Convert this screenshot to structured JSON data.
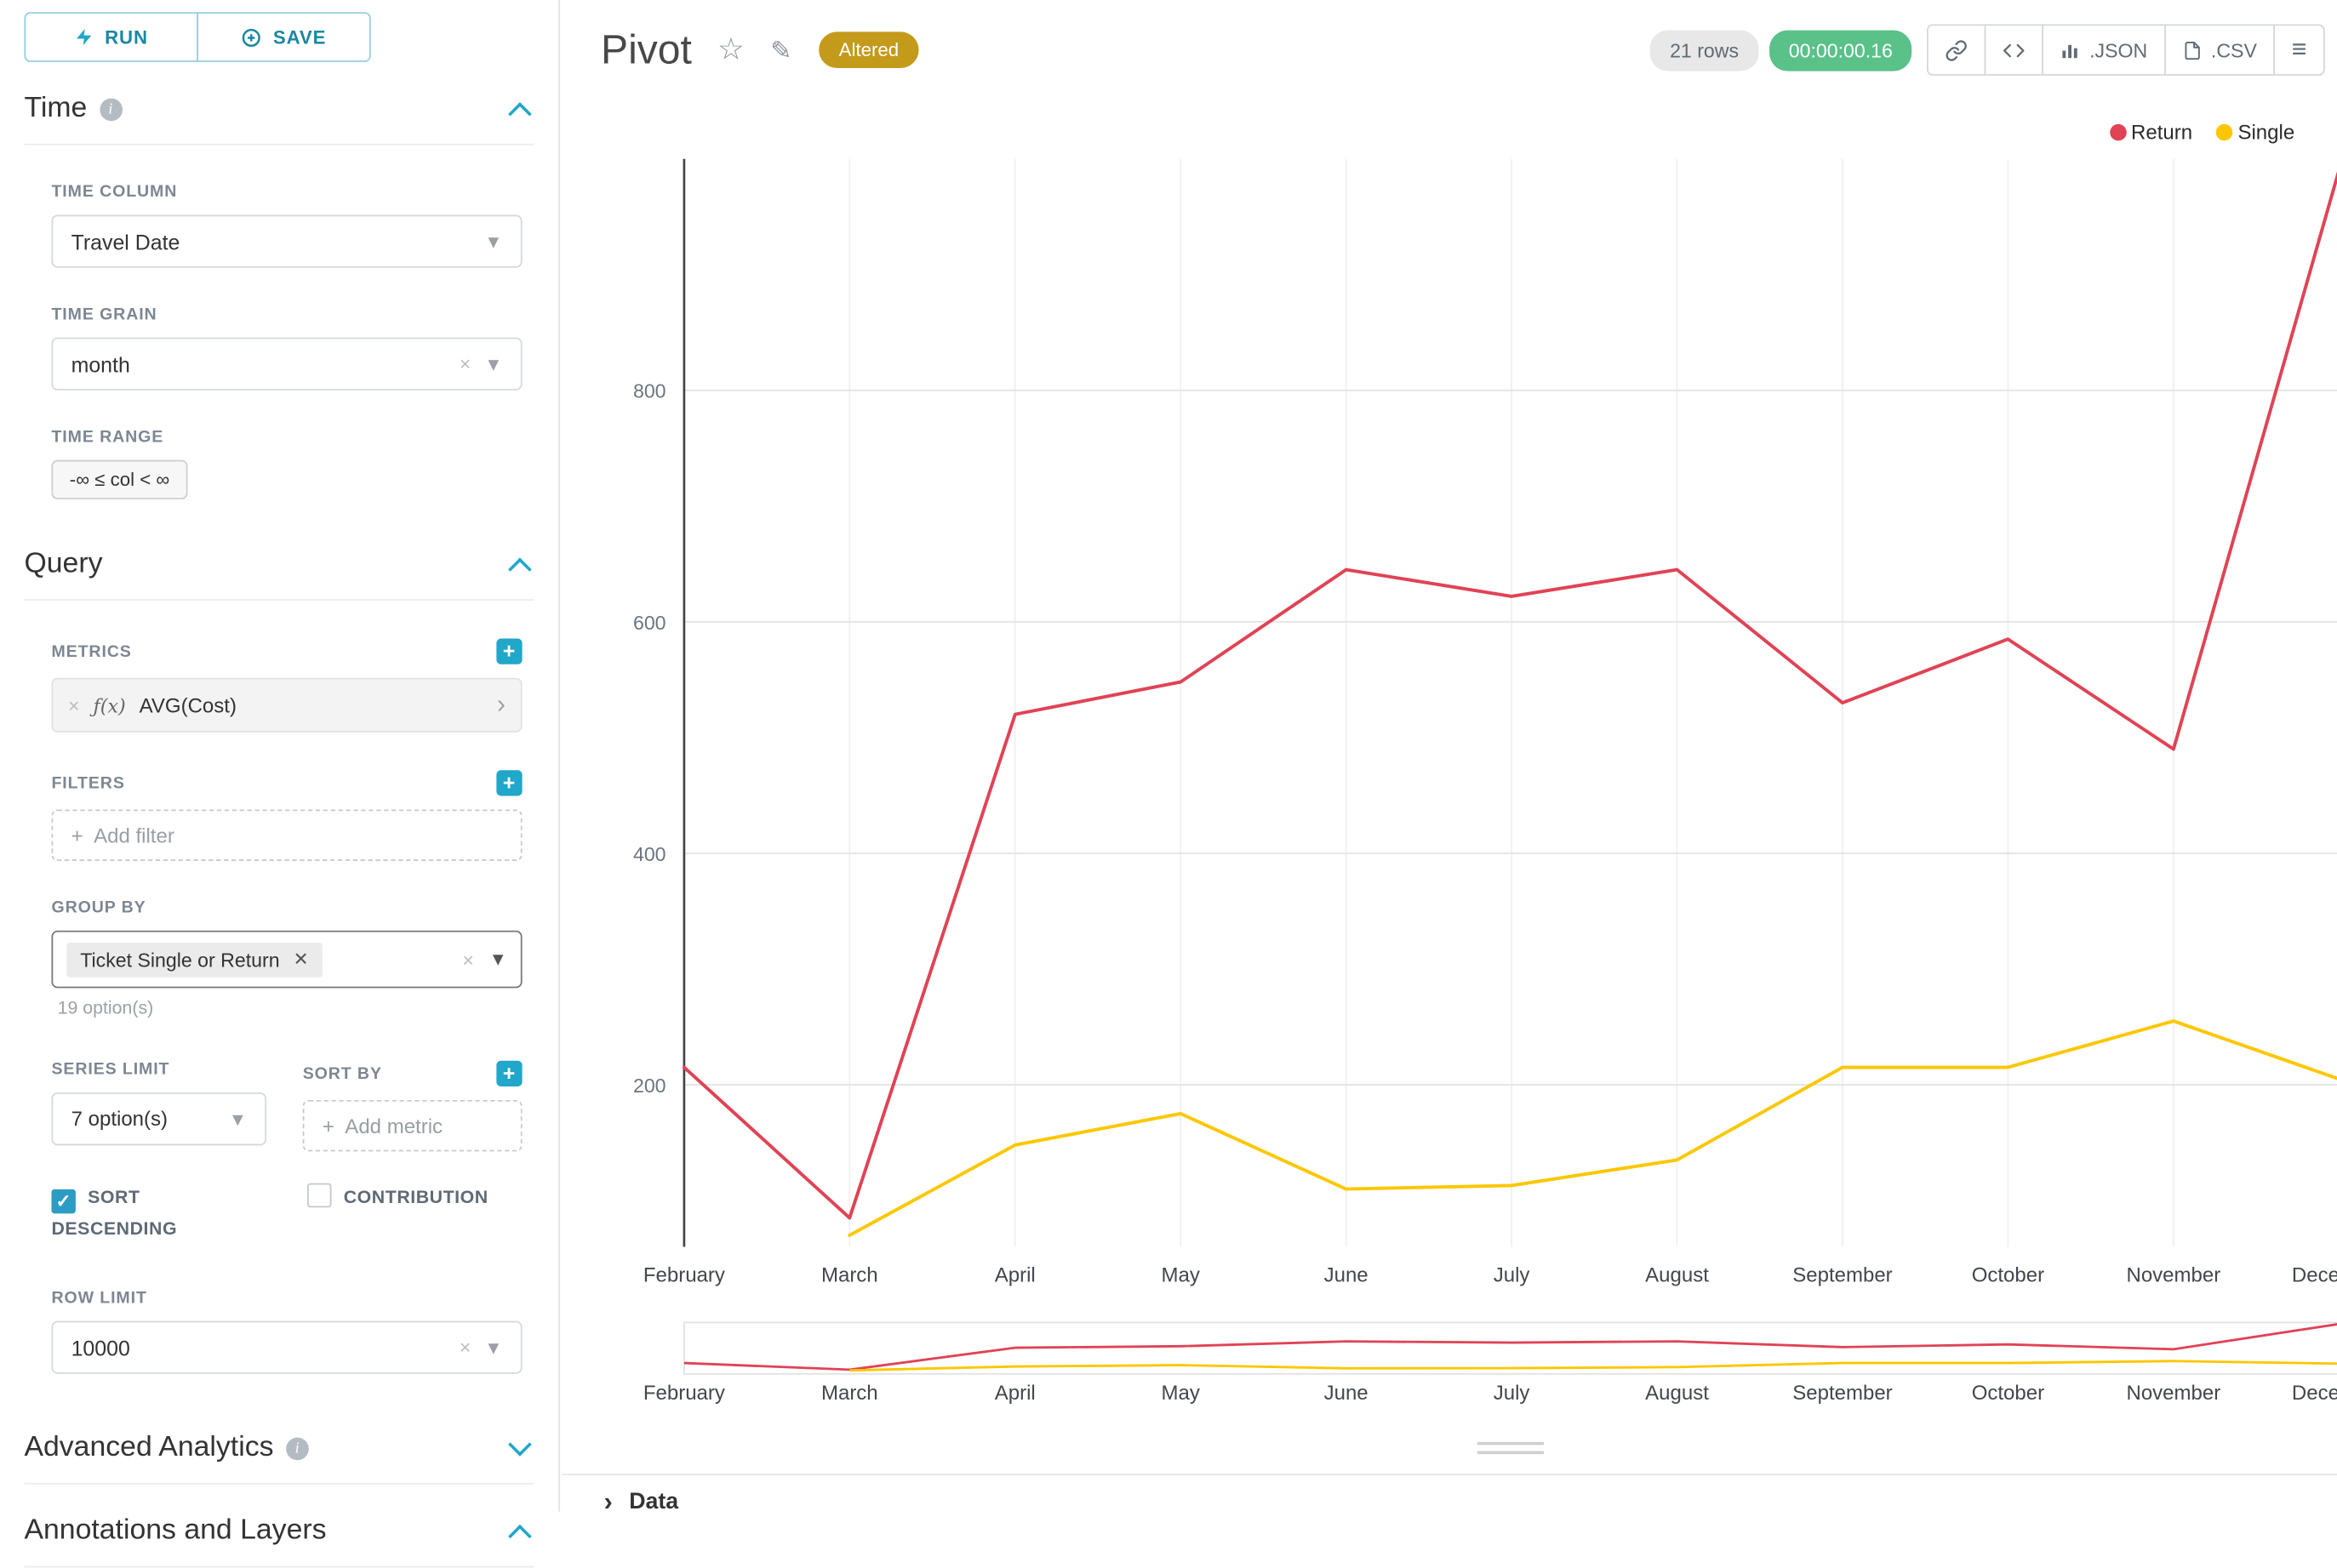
{
  "sidebar": {
    "run_label": "RUN",
    "save_label": "SAVE",
    "time": {
      "title": "Time",
      "time_column_label": "TIME COLUMN",
      "time_column_value": "Travel Date",
      "time_grain_label": "TIME GRAIN",
      "time_grain_value": "month",
      "time_range_label": "TIME RANGE",
      "time_range_value": "-∞ ≤ col < ∞"
    },
    "query": {
      "title": "Query",
      "metrics_label": "METRICS",
      "metric_fx": "ƒ(x)",
      "metric_chip": "AVG(Cost)",
      "filters_label": "FILTERS",
      "add_filter": "Add filter",
      "group_by_label": "GROUP BY",
      "group_by_tag": "Ticket Single or Return",
      "group_by_hint": "19 option(s)",
      "series_limit_label": "SERIES LIMIT",
      "series_limit_value": "7 option(s)",
      "sort_by_label": "SORT BY",
      "add_metric": "Add metric",
      "sort_descending_label": "SORT DESCENDING",
      "contribution_label": "CONTRIBUTION",
      "row_limit_label": "ROW LIMIT",
      "row_limit_value": "10000"
    },
    "advanced_title": "Advanced Analytics",
    "annotations_title": "Annotations and Layers"
  },
  "header": {
    "title": "Pivot",
    "altered_badge": "Altered",
    "rows_badge": "21 rows",
    "timer_badge": "00:00:00.16",
    "json_label": ".JSON",
    "csv_label": ".CSV"
  },
  "footer": {
    "data_label": "Data"
  },
  "colors": {
    "accent": "#20a7c9",
    "altered_badge": "#c49a1b",
    "timer_badge": "#5ac189",
    "rows_badge": "#e8e8e8",
    "return_series": "#e04355",
    "single_series": "#fcc700"
  },
  "chart_data": {
    "type": "line",
    "title": "Pivot",
    "categories": [
      "February",
      "March",
      "April",
      "May",
      "June",
      "July",
      "August",
      "September",
      "October",
      "November",
      "December"
    ],
    "series": [
      {
        "name": "Return",
        "color": "#e04355",
        "values": [
          215,
          85,
          520,
          548,
          645,
          622,
          645,
          530,
          585,
          490,
          990
        ]
      },
      {
        "name": "Single",
        "color": "#fcc700",
        "values": [
          null,
          70,
          148,
          175,
          110,
          113,
          135,
          215,
          215,
          255,
          205
        ]
      }
    ],
    "yticks": [
      200,
      400,
      600,
      800
    ],
    "ylim": [
      60,
      1000
    ],
    "xlabel": "",
    "ylabel": "",
    "grid": true,
    "legend_position": "top-right",
    "has_range_brush": true
  }
}
